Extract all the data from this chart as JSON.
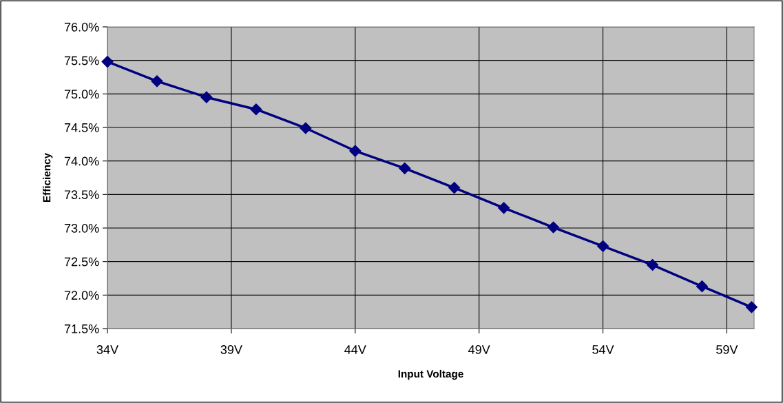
{
  "chart_data": {
    "type": "line",
    "xlabel": "Input Voltage",
    "ylabel": "Efficiency",
    "x": [
      34,
      36,
      38,
      40,
      42,
      44,
      46,
      48,
      50,
      52,
      54,
      56,
      58,
      60
    ],
    "series": [
      {
        "color": "#000080",
        "values": [
          75.48,
          75.19,
          74.95,
          74.77,
          74.49,
          74.15,
          73.89,
          73.6,
          73.3,
          73.01,
          72.73,
          72.45,
          72.13,
          71.82
        ]
      }
    ],
    "xlim": [
      34,
      60.1
    ],
    "xticks": [
      {
        "value": 34,
        "label": "34V"
      },
      {
        "value": 39,
        "label": "39V"
      },
      {
        "value": 44,
        "label": "44V"
      },
      {
        "value": 49,
        "label": "49V"
      },
      {
        "value": 54,
        "label": "54V"
      },
      {
        "value": 59,
        "label": "59V"
      }
    ],
    "ylim": [
      71.5,
      76.0
    ],
    "yticks": [
      {
        "value": 71.5,
        "label": "71.5%"
      },
      {
        "value": 72.0,
        "label": "72.0%"
      },
      {
        "value": 72.5,
        "label": "72.5%"
      },
      {
        "value": 73.0,
        "label": "73.0%"
      },
      {
        "value": 73.5,
        "label": "73.5%"
      },
      {
        "value": 74.0,
        "label": "74.0%"
      },
      {
        "value": 74.5,
        "label": "74.5%"
      },
      {
        "value": 75.0,
        "label": "75.0%"
      },
      {
        "value": 75.5,
        "label": "75.5%"
      },
      {
        "value": 76.0,
        "label": "76.0%"
      }
    ],
    "grid": true,
    "marker": "diamond",
    "line_style": "solid"
  }
}
